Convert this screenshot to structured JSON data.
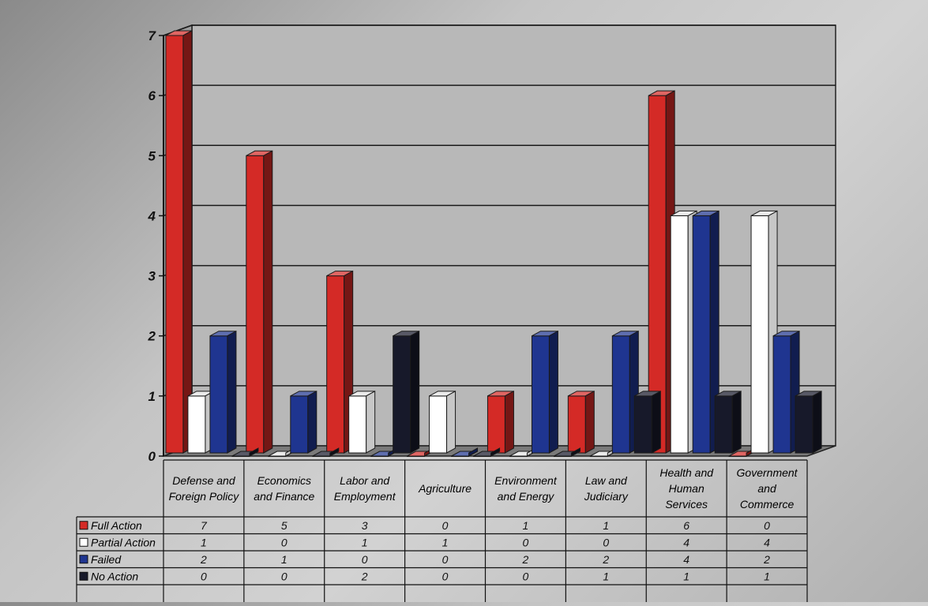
{
  "chart_data": {
    "type": "bar",
    "categories": [
      "Defense and\nForeign Policy",
      "Economics\nand Finance",
      "Labor and\nEmployment",
      "Agriculture",
      "Environment\nand Energy",
      "Law and\nJudiciary",
      "Health and\nHuman\nServices",
      "Government\nand\nCommerce"
    ],
    "series": [
      {
        "name": "Full Action",
        "values": [
          7,
          5,
          3,
          0,
          1,
          1,
          6,
          0
        ]
      },
      {
        "name": "Partial Action",
        "values": [
          1,
          0,
          1,
          1,
          0,
          0,
          4,
          4
        ]
      },
      {
        "name": "Failed",
        "values": [
          2,
          1,
          0,
          0,
          2,
          2,
          4,
          2
        ]
      },
      {
        "name": "No Action",
        "values": [
          0,
          0,
          2,
          0,
          0,
          1,
          1,
          1
        ]
      }
    ],
    "ylim": [
      0,
      7
    ],
    "yticks": [
      "0",
      "1",
      "2",
      "3",
      "4",
      "5",
      "6",
      "7"
    ],
    "grid": true,
    "legend_placement": "data table, bottom-left",
    "colors": {
      "Full Action": "#d42a26",
      "Partial Action": "#ffffff",
      "Failed": "#1f3590",
      "No Action": "#17192a",
      "wall": "#b8b8b8",
      "floor": "#7a7a7a"
    }
  }
}
